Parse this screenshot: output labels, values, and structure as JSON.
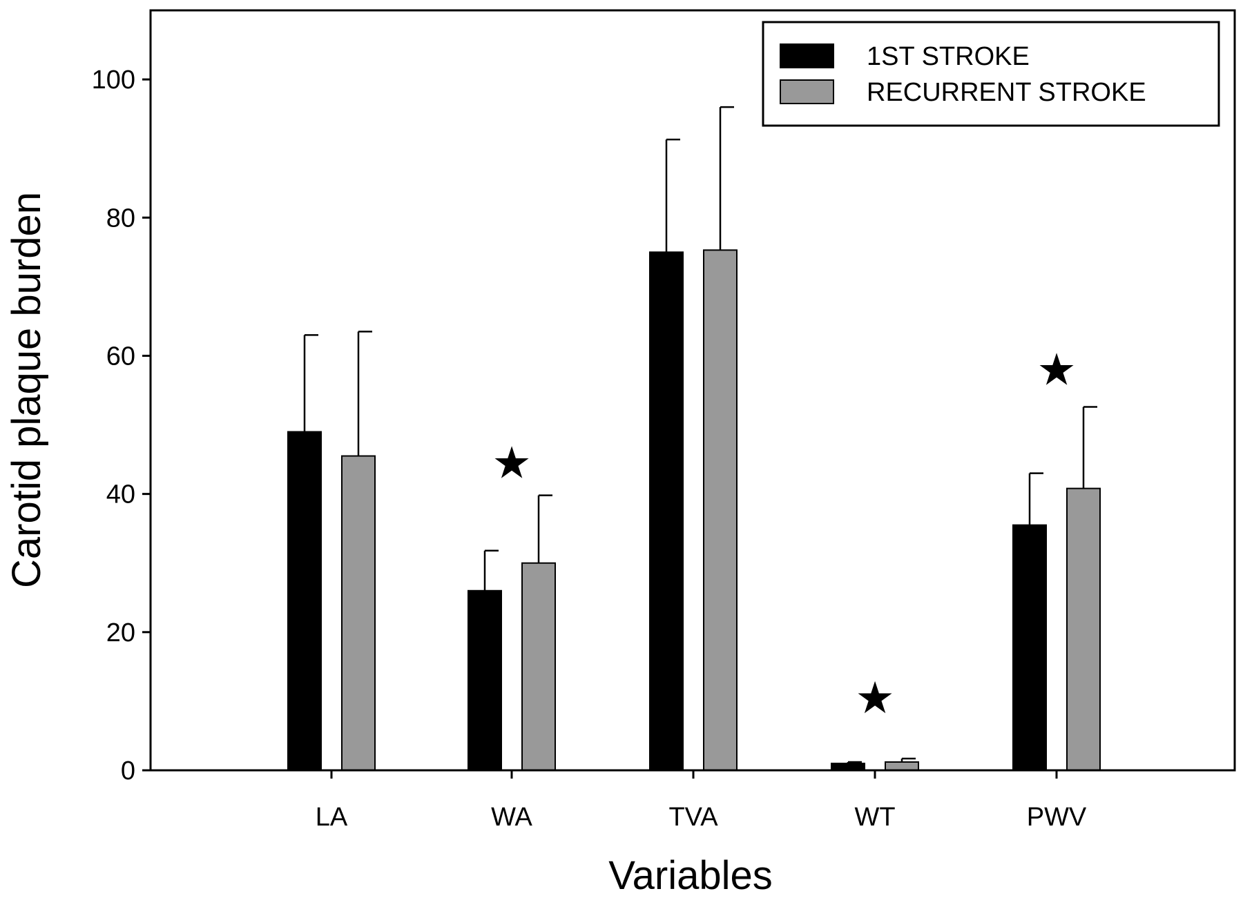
{
  "chart_data": {
    "type": "bar",
    "title": "",
    "xlabel": "Variables",
    "ylabel": "Carotid plaque burden",
    "ylim": [
      0,
      110
    ],
    "yticks": [
      0,
      20,
      40,
      60,
      80,
      100
    ],
    "grid": false,
    "legend_position": "top-right",
    "categories": [
      "LA",
      "WA",
      "TVA",
      "WT",
      "PWV"
    ],
    "series": [
      {
        "name": "1ST STROKE",
        "color": "#000000",
        "values": [
          49,
          26,
          75,
          1,
          35.5
        ],
        "error": [
          14,
          5.8,
          16.3,
          0.2,
          7.5
        ]
      },
      {
        "name": "RECURRENT STROKE",
        "color": "#999999",
        "values": [
          45.5,
          30,
          75.3,
          1.2,
          40.8
        ],
        "error": [
          18,
          9.8,
          20.7,
          0.5,
          11.8
        ]
      }
    ],
    "significance_markers": {
      "symbol": "★",
      "categories": [
        "WA",
        "WT",
        "PWV"
      ],
      "y": [
        44.5,
        10.5,
        58
      ]
    }
  }
}
